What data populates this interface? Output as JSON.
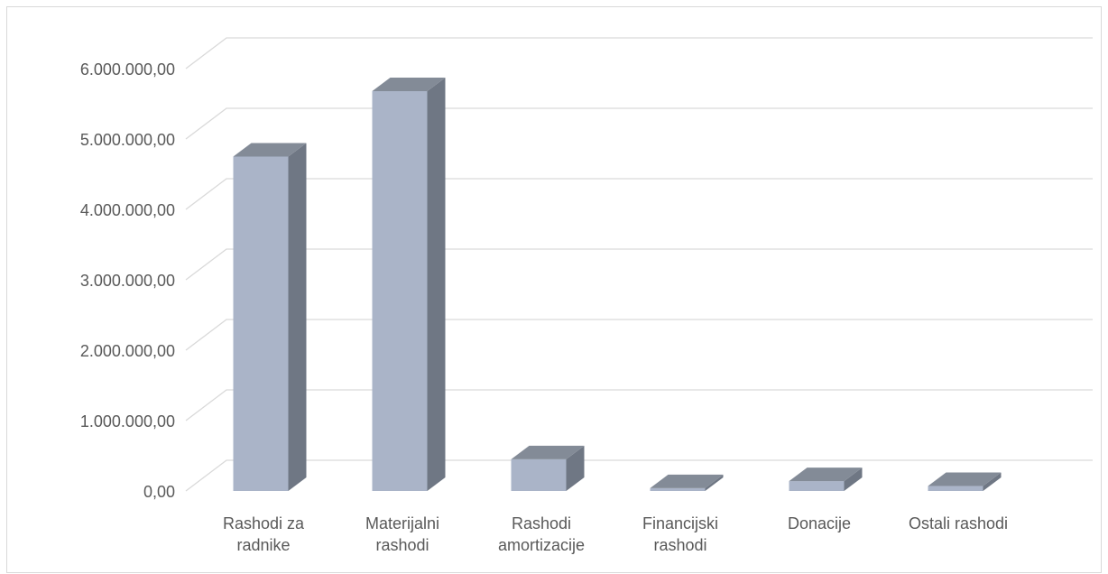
{
  "chart_data": {
    "type": "bar",
    "style": "3d-column",
    "title": "",
    "xlabel": "",
    "ylabel": "",
    "ylim": [
      0,
      6000000
    ],
    "grid": true,
    "legend": "none",
    "y_tick_labels": [
      "0,00",
      "1.000.000,00",
      "2.000.000,00",
      "3.000.000,00",
      "4.000.000,00",
      "5.000.000,00",
      "6.000.000,00"
    ],
    "categories": [
      [
        "Rashodi za",
        "radnike"
      ],
      [
        "Materijalni",
        "rashodi"
      ],
      [
        "Rashodi",
        "amortizacije"
      ],
      [
        "Financijski",
        "rashodi"
      ],
      [
        "Donacije"
      ],
      [
        "Ostali rashodi"
      ]
    ],
    "values": [
      4750000,
      5680000,
      450000,
      40000,
      140000,
      70000
    ],
    "colors": {
      "front": "#aab4c8",
      "side": "#6f7784",
      "top": "#838b97",
      "grid": "#d9d9d9",
      "text": "#595959"
    }
  }
}
